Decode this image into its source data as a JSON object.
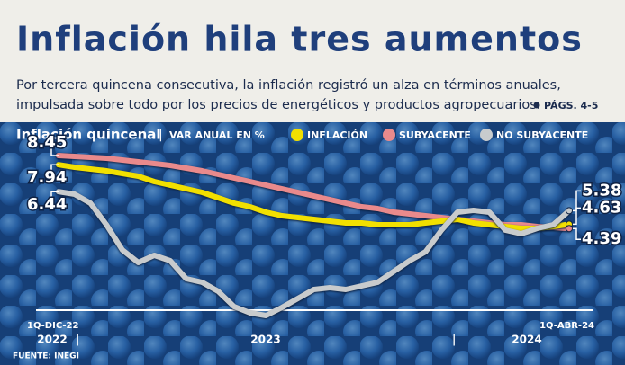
{
  "chart_data": {
    "type": "line",
    "title": "Inflación hila tres aumentos",
    "subtitle": [
      "Por tercera quincena consecutiva, la inflación registró un alza en términos anuales,",
      "impulsada sobre todo por los precios de energéticos y productos agropecuarios."
    ],
    "reference": "PÁGS. 4-5",
    "chart_title": "Inflación quincenal",
    "y_label": "VAR ANUAL EN %",
    "legend": "top",
    "categories": [
      "1Q-DIC-22",
      null,
      null,
      null,
      null,
      null,
      null,
      null,
      null,
      null,
      null,
      null,
      null,
      null,
      null,
      null,
      null,
      null,
      null,
      null,
      null,
      null,
      null,
      null,
      null,
      null,
      null,
      null,
      null,
      null,
      null,
      null,
      "1Q-ABR-24"
    ],
    "year_labels": [
      "2022",
      "2023",
      "2024"
    ],
    "ylim": [
      -1,
      9
    ],
    "series": [
      {
        "name": "SUBYACENTE",
        "color": "#e98a8c",
        "values": [
          8.45,
          8.4,
          8.35,
          8.3,
          8.2,
          8.1,
          8.0,
          7.9,
          7.75,
          7.6,
          7.4,
          7.2,
          7.0,
          6.8,
          6.6,
          6.4,
          6.2,
          6.0,
          5.8,
          5.6,
          5.5,
          5.3,
          5.2,
          5.1,
          5.0,
          4.9,
          4.8,
          4.7,
          4.6,
          4.6,
          4.5,
          4.45,
          4.39
        ]
      },
      {
        "name": "INFLACIÓN",
        "color": "#f2e000",
        "values": [
          7.94,
          7.8,
          7.7,
          7.6,
          7.45,
          7.3,
          7.0,
          6.8,
          6.6,
          6.4,
          6.1,
          5.8,
          5.6,
          5.3,
          5.1,
          5.0,
          4.9,
          4.8,
          4.7,
          4.7,
          4.6,
          4.6,
          4.6,
          4.7,
          4.8,
          4.9,
          4.7,
          4.6,
          4.5,
          4.4,
          4.4,
          4.5,
          4.63
        ]
      },
      {
        "name": "NO SUBYACENTE",
        "color": "#c8cbcd",
        "values": [
          6.44,
          6.3,
          5.8,
          4.6,
          3.2,
          2.5,
          2.9,
          2.6,
          1.6,
          1.4,
          0.9,
          0.05,
          -0.3,
          -0.45,
          0.0,
          0.5,
          1.0,
          1.1,
          1.0,
          1.2,
          1.4,
          2.0,
          2.6,
          3.1,
          4.3,
          5.3,
          5.4,
          5.3,
          4.3,
          4.1,
          4.4,
          4.6,
          5.38
        ]
      }
    ],
    "source": "FUENTE: INEGI"
  }
}
